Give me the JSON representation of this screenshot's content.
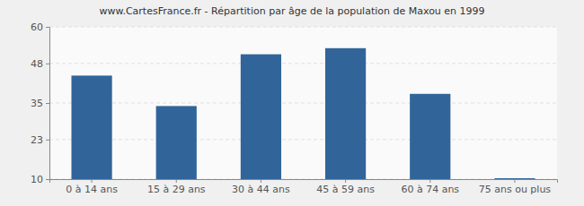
{
  "chart_data": {
    "type": "bar",
    "title": "www.CartesFrance.fr - Répartition par âge de la population de Maxou en 1999",
    "categories": [
      "0 à 14 ans",
      "15 à 29 ans",
      "30 à 44 ans",
      "45 à 59 ans",
      "60 à 74 ans",
      "75 ans ou plus"
    ],
    "values": [
      44,
      34,
      51,
      53,
      38,
      10.3
    ],
    "color": "#31659a",
    "ylim": [
      10,
      60
    ],
    "yticks": [
      10,
      23,
      35,
      48,
      60
    ],
    "grid": true
  }
}
